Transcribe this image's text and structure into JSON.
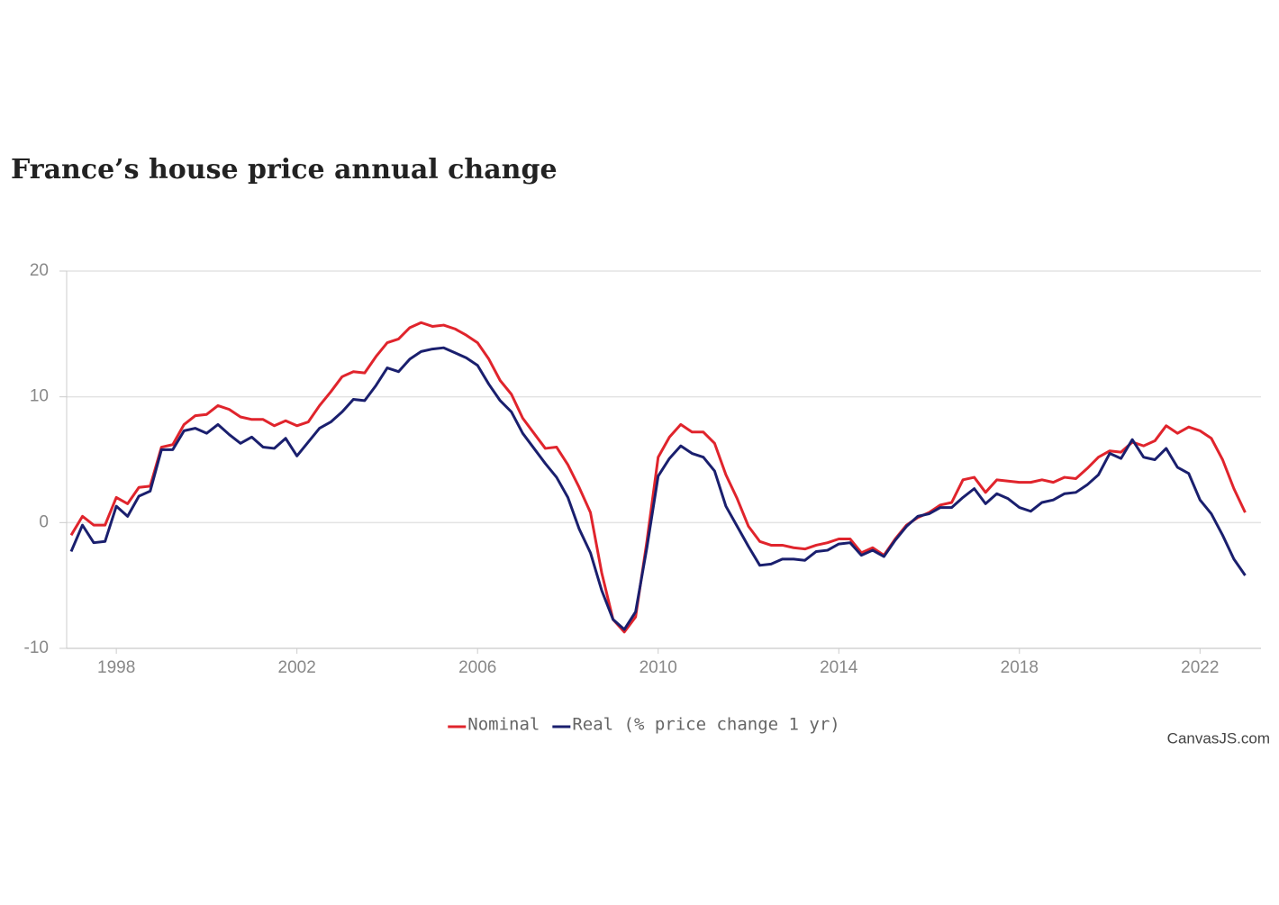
{
  "chart_data": {
    "type": "line",
    "title": "France’s house price annual change",
    "x": [
      1997,
      1997.25,
      1997.5,
      1997.75,
      1998,
      1998.25,
      1998.5,
      1998.75,
      1999,
      1999.25,
      1999.5,
      1999.75,
      2000,
      2000.25,
      2000.5,
      2000.75,
      2001,
      2001.25,
      2001.5,
      2001.75,
      2002,
      2002.25,
      2002.5,
      2002.75,
      2003,
      2003.25,
      2003.5,
      2003.75,
      2004,
      2004.25,
      2004.5,
      2004.75,
      2005,
      2005.25,
      2005.5,
      2005.75,
      2006,
      2006.25,
      2006.5,
      2006.75,
      2007,
      2007.25,
      2007.5,
      2007.75,
      2008,
      2008.25,
      2008.5,
      2008.75,
      2009,
      2009.25,
      2009.5,
      2009.75,
      2010,
      2010.25,
      2010.5,
      2010.75,
      2011,
      2011.25,
      2011.5,
      2011.75,
      2012,
      2012.25,
      2012.5,
      2012.75,
      2013,
      2013.25,
      2013.5,
      2013.75,
      2014,
      2014.25,
      2014.5,
      2014.75,
      2015,
      2015.25,
      2015.5,
      2015.75,
      2016,
      2016.25,
      2016.5,
      2016.75,
      2017,
      2017.25,
      2017.5,
      2017.75,
      2018,
      2018.25,
      2018.5,
      2018.75,
      2019,
      2019.25,
      2019.5,
      2019.75,
      2020,
      2020.25,
      2020.5,
      2020.75,
      2021,
      2021.25,
      2021.5,
      2021.75,
      2022,
      2022.25,
      2022.5,
      2022.75,
      2023
    ],
    "series": [
      {
        "name": "Nominal",
        "color": "#e0242c",
        "values": [
          -1.0,
          0.5,
          -0.2,
          -0.2,
          2.0,
          1.5,
          2.8,
          2.9,
          6.0,
          6.2,
          7.8,
          8.5,
          8.6,
          9.3,
          9.0,
          8.4,
          8.2,
          8.2,
          7.7,
          8.1,
          7.7,
          8.0,
          9.3,
          10.4,
          11.6,
          12.0,
          11.9,
          13.2,
          14.3,
          14.6,
          15.5,
          15.9,
          15.6,
          15.7,
          15.4,
          14.9,
          14.3,
          13.0,
          11.3,
          10.2,
          8.3,
          7.1,
          5.9,
          6.0,
          4.6,
          2.8,
          0.8,
          -4.0,
          -7.7,
          -8.7,
          -7.5,
          -1.5,
          5.2,
          6.8,
          7.8,
          7.2,
          7.2,
          6.3,
          3.8,
          1.9,
          -0.3,
          -1.5,
          -1.8,
          -1.8,
          -2.0,
          -2.1,
          -1.8,
          -1.6,
          -1.3,
          -1.3,
          -2.4,
          -2.0,
          -2.6,
          -1.3,
          -0.2,
          0.4,
          0.8,
          1.4,
          1.6,
          3.4,
          3.6,
          2.4,
          3.4,
          3.3,
          3.2,
          3.2,
          3.4,
          3.2,
          3.6,
          3.5,
          4.3,
          5.2,
          5.7,
          5.6,
          6.4,
          6.1,
          6.5,
          7.7,
          7.1,
          7.6,
          7.3,
          6.7,
          5.0,
          2.7,
          0.8
        ]
      },
      {
        "name": "Real (% price change 1 yr)",
        "color": "#1a1f6e",
        "values": [
          -2.3,
          -0.2,
          -1.6,
          -1.5,
          1.3,
          0.5,
          2.1,
          2.5,
          5.8,
          5.8,
          7.3,
          7.5,
          7.1,
          7.8,
          7.0,
          6.3,
          6.8,
          6.0,
          5.9,
          6.7,
          5.3,
          6.4,
          7.5,
          8.0,
          8.8,
          9.8,
          9.7,
          10.9,
          12.3,
          12.0,
          13.0,
          13.6,
          13.8,
          13.9,
          13.5,
          13.1,
          12.5,
          11.0,
          9.7,
          8.8,
          7.1,
          5.9,
          4.7,
          3.6,
          2.0,
          -0.5,
          -2.4,
          -5.4,
          -7.7,
          -8.5,
          -7.1,
          -2.0,
          3.7,
          5.1,
          6.1,
          5.5,
          5.2,
          4.1,
          1.3,
          -0.3,
          -1.9,
          -3.4,
          -3.3,
          -2.9,
          -2.9,
          -3.0,
          -2.3,
          -2.2,
          -1.7,
          -1.6,
          -2.6,
          -2.2,
          -2.7,
          -1.4,
          -0.3,
          0.5,
          0.7,
          1.2,
          1.2,
          2.0,
          2.7,
          1.5,
          2.3,
          1.9,
          1.2,
          0.9,
          1.6,
          1.8,
          2.3,
          2.4,
          3.0,
          3.8,
          5.5,
          5.1,
          6.6,
          5.2,
          5.0,
          5.9,
          4.4,
          3.9,
          1.8,
          0.7,
          -1.0,
          -2.9,
          -4.2
        ]
      }
    ],
    "xlim": [
      1996.9,
      2023.35
    ],
    "xticks": [
      1998,
      2002,
      2006,
      2010,
      2014,
      2018,
      2022
    ],
    "ylim": [
      -10,
      20
    ],
    "yticks": [
      -10,
      0,
      10,
      20
    ],
    "grid": true,
    "legend": "bottom",
    "credit": "CanvasJS.com"
  }
}
